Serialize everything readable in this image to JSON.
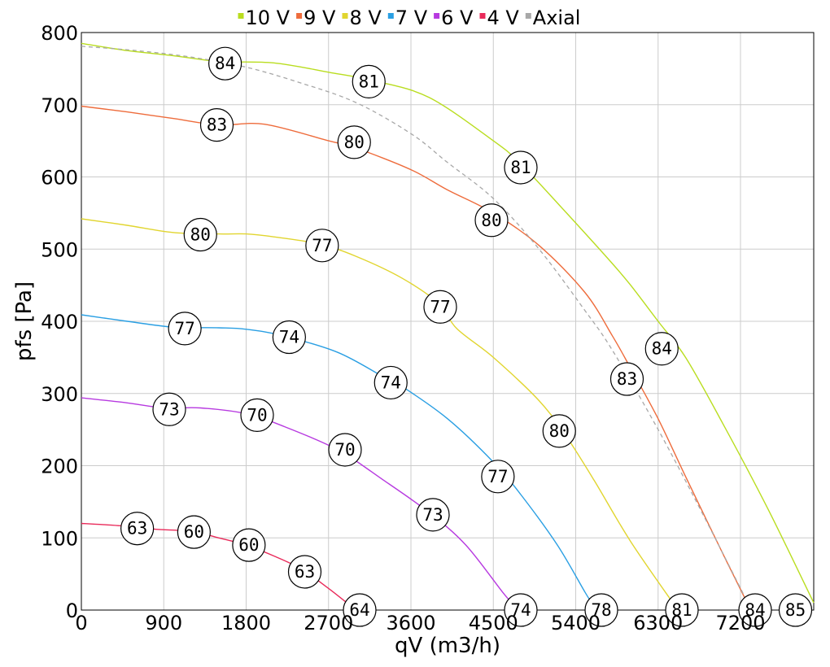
{
  "chart_data": {
    "type": "line",
    "xlabel": "qV (m3/h)",
    "ylabel": "pfs [Pa]",
    "xlim": [
      0,
      8000
    ],
    "ylim": [
      0,
      800
    ],
    "x_ticks": [
      0,
      900,
      1800,
      2700,
      3600,
      4500,
      5400,
      6300,
      7200
    ],
    "y_ticks": [
      0,
      100,
      200,
      300,
      400,
      500,
      600,
      700,
      800
    ],
    "grid": true,
    "legend_position": "top",
    "series": [
      {
        "name": "10 V",
        "color": "#b9dd1f",
        "dashed": false,
        "points": [
          [
            0,
            785
          ],
          [
            500,
            775
          ],
          [
            1000,
            768
          ],
          [
            1500,
            760
          ],
          [
            2100,
            758
          ],
          [
            2700,
            745
          ],
          [
            3200,
            733
          ],
          [
            3800,
            710
          ],
          [
            4500,
            650
          ],
          [
            4800,
            618
          ],
          [
            5300,
            550
          ],
          [
            5800,
            480
          ],
          [
            6000,
            450
          ],
          [
            6300,
            400
          ],
          [
            6600,
            350
          ],
          [
            7000,
            260
          ],
          [
            7500,
            140
          ],
          [
            8000,
            10
          ]
        ],
        "labels": [
          {
            "x": 1570,
            "y": 757,
            "text": "84"
          },
          {
            "x": 3140,
            "y": 732,
            "text": "81"
          },
          {
            "x": 4800,
            "y": 613,
            "text": "81"
          },
          {
            "x": 6340,
            "y": 362,
            "text": "84"
          },
          {
            "x": 7800,
            "y": 0,
            "text": "85"
          }
        ]
      },
      {
        "name": "9 V",
        "color": "#ee6c3c",
        "dashed": false,
        "points": [
          [
            0,
            698
          ],
          [
            500,
            690
          ],
          [
            1000,
            681
          ],
          [
            1500,
            672
          ],
          [
            2000,
            673
          ],
          [
            2700,
            650
          ],
          [
            3000,
            640
          ],
          [
            3600,
            610
          ],
          [
            4000,
            582
          ],
          [
            4500,
            550
          ],
          [
            5000,
            505
          ],
          [
            5500,
            440
          ],
          [
            5800,
            380
          ],
          [
            6000,
            335
          ],
          [
            6300,
            265
          ],
          [
            6600,
            185
          ],
          [
            7000,
            80
          ],
          [
            7300,
            3
          ]
        ],
        "labels": [
          {
            "x": 1480,
            "y": 672,
            "text": "83"
          },
          {
            "x": 2980,
            "y": 648,
            "text": "80"
          },
          {
            "x": 4480,
            "y": 540,
            "text": "80"
          },
          {
            "x": 5960,
            "y": 320,
            "text": "83"
          },
          {
            "x": 7360,
            "y": 0,
            "text": "84"
          }
        ]
      },
      {
        "name": "8 V",
        "color": "#e1d52f",
        "dashed": false,
        "points": [
          [
            0,
            542
          ],
          [
            500,
            533
          ],
          [
            1000,
            523
          ],
          [
            1500,
            521
          ],
          [
            1800,
            521
          ],
          [
            2100,
            517
          ],
          [
            2600,
            507
          ],
          [
            3000,
            490
          ],
          [
            3500,
            460
          ],
          [
            3900,
            425
          ],
          [
            4100,
            390
          ],
          [
            4500,
            350
          ],
          [
            5000,
            290
          ],
          [
            5300,
            240
          ],
          [
            5600,
            180
          ],
          [
            6000,
            95
          ],
          [
            6500,
            3
          ]
        ],
        "labels": [
          {
            "x": 1300,
            "y": 520,
            "text": "80"
          },
          {
            "x": 2630,
            "y": 505,
            "text": "77"
          },
          {
            "x": 3920,
            "y": 420,
            "text": "77"
          },
          {
            "x": 5220,
            "y": 248,
            "text": "80"
          },
          {
            "x": 6560,
            "y": 0,
            "text": "81"
          }
        ]
      },
      {
        "name": "7 V",
        "color": "#2a9fe3",
        "dashed": false,
        "points": [
          [
            0,
            409
          ],
          [
            500,
            400
          ],
          [
            1000,
            392
          ],
          [
            1500,
            391
          ],
          [
            1800,
            389
          ],
          [
            2200,
            380
          ],
          [
            2800,
            357
          ],
          [
            3300,
            323
          ],
          [
            3500,
            310
          ],
          [
            4000,
            265
          ],
          [
            4500,
            205
          ],
          [
            4800,
            160
          ],
          [
            5200,
            90
          ],
          [
            5500,
            25
          ],
          [
            5600,
            5
          ]
        ],
        "labels": [
          {
            "x": 1130,
            "y": 390,
            "text": "77"
          },
          {
            "x": 2270,
            "y": 378,
            "text": "74"
          },
          {
            "x": 3380,
            "y": 315,
            "text": "74"
          },
          {
            "x": 4550,
            "y": 185,
            "text": "77"
          },
          {
            "x": 5680,
            "y": 0,
            "text": "78"
          }
        ]
      },
      {
        "name": "6 V",
        "color": "#b73ae0",
        "dashed": false,
        "points": [
          [
            0,
            294
          ],
          [
            500,
            287
          ],
          [
            900,
            280
          ],
          [
            1300,
            280
          ],
          [
            1800,
            272
          ],
          [
            2200,
            255
          ],
          [
            2800,
            222
          ],
          [
            3300,
            180
          ],
          [
            3800,
            135
          ],
          [
            4200,
            90
          ],
          [
            4600,
            25
          ],
          [
            4750,
            3
          ]
        ],
        "labels": [
          {
            "x": 960,
            "y": 278,
            "text": "73"
          },
          {
            "x": 1920,
            "y": 270,
            "text": "70"
          },
          {
            "x": 2880,
            "y": 222,
            "text": "70"
          },
          {
            "x": 3840,
            "y": 132,
            "text": "73"
          },
          {
            "x": 4800,
            "y": 0,
            "text": "74"
          }
        ]
      },
      {
        "name": "4 V",
        "color": "#e92a5a",
        "dashed": false,
        "points": [
          [
            0,
            120
          ],
          [
            400,
            117
          ],
          [
            800,
            112
          ],
          [
            1200,
            109
          ],
          [
            1500,
            100
          ],
          [
            1800,
            90
          ],
          [
            2100,
            75
          ],
          [
            2400,
            57
          ],
          [
            2700,
            30
          ],
          [
            2950,
            5
          ]
        ],
        "labels": [
          {
            "x": 610,
            "y": 113,
            "text": "63"
          },
          {
            "x": 1230,
            "y": 108,
            "text": "60"
          },
          {
            "x": 1830,
            "y": 90,
            "text": "60"
          },
          {
            "x": 2440,
            "y": 53,
            "text": "63"
          },
          {
            "x": 3040,
            "y": 0,
            "text": "64"
          }
        ]
      },
      {
        "name": "Axial",
        "color": "#a8a8a8",
        "dashed": true,
        "points": [
          [
            0,
            781
          ],
          [
            600,
            775
          ],
          [
            1200,
            766
          ],
          [
            1800,
            752
          ],
          [
            2400,
            730
          ],
          [
            3000,
            703
          ],
          [
            3600,
            660
          ],
          [
            4000,
            620
          ],
          [
            4500,
            570
          ],
          [
            5000,
            500
          ],
          [
            5500,
            415
          ],
          [
            5800,
            360
          ],
          [
            6300,
            250
          ],
          [
            6800,
            130
          ],
          [
            7300,
            5
          ]
        ],
        "labels": []
      }
    ]
  }
}
